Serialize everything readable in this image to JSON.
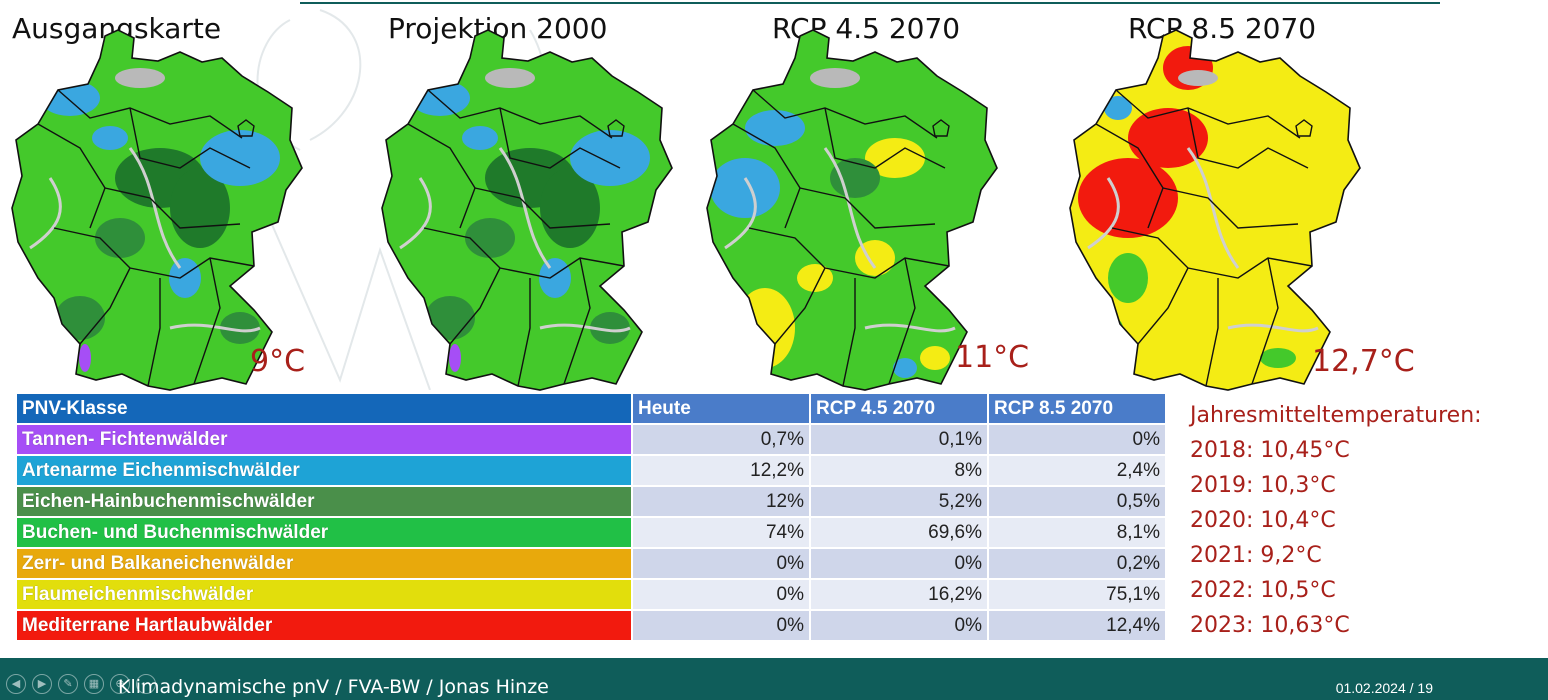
{
  "maps": [
    {
      "title": "Ausgangskarte",
      "temp": "9°C",
      "style": "base"
    },
    {
      "title": "Projektion 2000",
      "temp": "",
      "style": "base"
    },
    {
      "title": "RCP 4.5 2070",
      "temp": "11°C",
      "style": "rcp45"
    },
    {
      "title": "RCP 8.5 2070",
      "temp": "12,7°C",
      "style": "rcp85"
    }
  ],
  "table": {
    "headers": [
      "PNV-Klasse",
      "Heute",
      "RCP 4.5 2070",
      "RCP 8.5 2070"
    ],
    "rows": [
      {
        "label": "Tannen- Fichtenwälder",
        "color": "#a64ef6",
        "values": [
          "0,7%",
          "0,1%",
          "0%"
        ]
      },
      {
        "label": "Artenarme Eichenmischwälder",
        "color": "#1ea3d6",
        "values": [
          "12,2%",
          "8%",
          "2,4%"
        ]
      },
      {
        "label": "Eichen-Hainbuchenmischwälder",
        "color": "#4a8f4a",
        "values": [
          "12%",
          "5,2%",
          "0,5%"
        ]
      },
      {
        "label": "Buchen- und Buchenmischwälder",
        "color": "#21c046",
        "values": [
          "74%",
          "69,6%",
          "8,1%"
        ]
      },
      {
        "label": "Zerr- und Balkaneichenwälder",
        "color": "#e8a90c",
        "values": [
          "0%",
          "0%",
          "0,2%"
        ]
      },
      {
        "label": "Flaumeichenmischwälder",
        "color": "#e2de0c",
        "values": [
          "0%",
          "16,2%",
          "75,1%"
        ]
      },
      {
        "label": "Mediterrane Hartlaubwälder",
        "color": "#f21a0e",
        "values": [
          "0%",
          "0%",
          "12,4%"
        ]
      }
    ]
  },
  "temperatures": {
    "title": "Jahresmitteltemperaturen:",
    "items": [
      "2018: 10,45°C",
      "2019: 10,3°C",
      "2020: 10,4°C",
      "2021:  9,2°C",
      "2022: 10,5°C",
      "2023: 10,63°C"
    ]
  },
  "footer": {
    "text": "Klimadynamische pnV / FVA-BW / Jonas Hinze",
    "date_page": "01.02.2024  /  19"
  },
  "colors": {
    "accent": "#0f5d5a",
    "temp_red": "#a8201a"
  }
}
